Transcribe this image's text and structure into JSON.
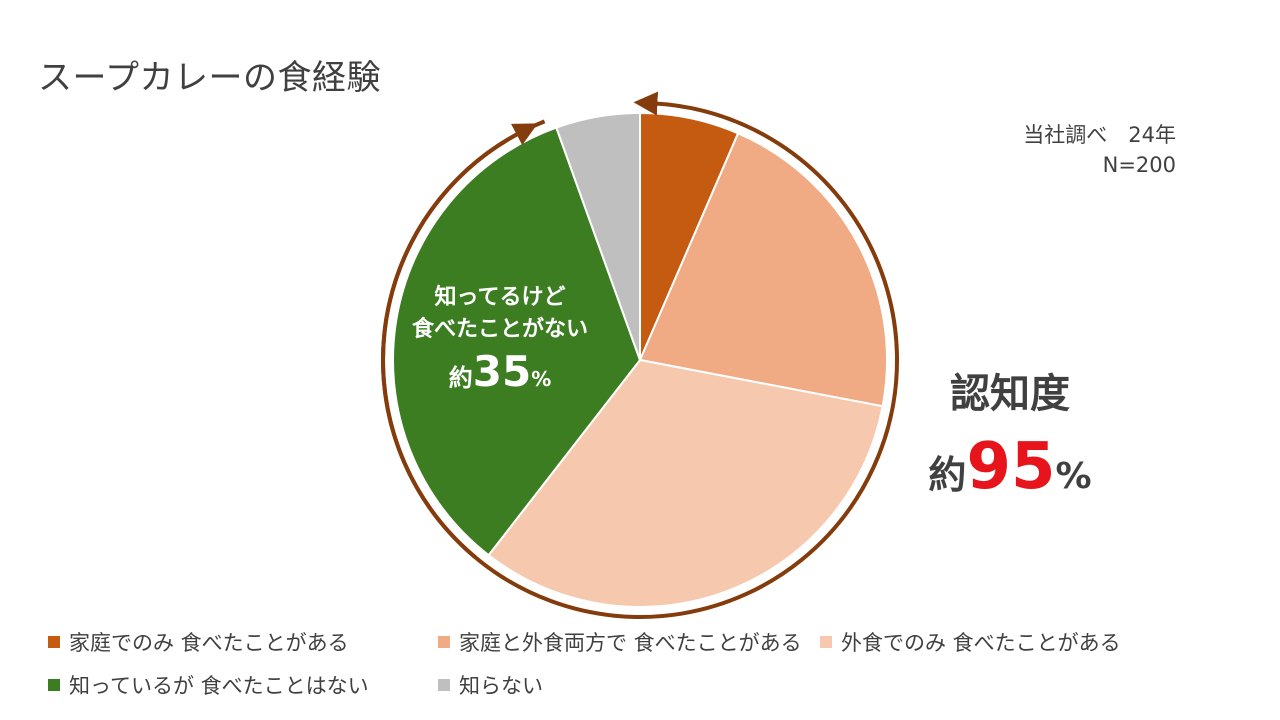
{
  "title": "スープカレーの食経験",
  "source": {
    "line1": "当社調べ　24年",
    "line2": "N=200"
  },
  "chart_data": {
    "type": "pie",
    "title": "スープカレーの食経験",
    "start_angle_deg": 0,
    "direction": "clockwise",
    "slices": [
      {
        "label": "家庭でのみ 食べたことがある",
        "value": 6.5,
        "color": "#c55a11"
      },
      {
        "label": "家庭と外食両方で 食べたことがある",
        "value": 21.5,
        "color": "#f0aa84"
      },
      {
        "label": "外食でのみ 食べたことがある",
        "value": 32.5,
        "color": "#f6c8ad"
      },
      {
        "label": "知っているが 食べたことはない",
        "value": 34,
        "color": "#3c7d22"
      },
      {
        "label": "知らない",
        "value": 5.5,
        "color": "#bfbfbf"
      }
    ],
    "arrow_color": "#843c0c",
    "annotations": [
      {
        "line1": "知ってるけど",
        "line2": "食べたことがない",
        "prefix": "約",
        "number": "35",
        "unit": "%"
      },
      {
        "line1": "認知度",
        "prefix": "約",
        "number": "95",
        "unit": "%",
        "number_color": "#e8141b"
      }
    ],
    "legend": "bottom"
  }
}
